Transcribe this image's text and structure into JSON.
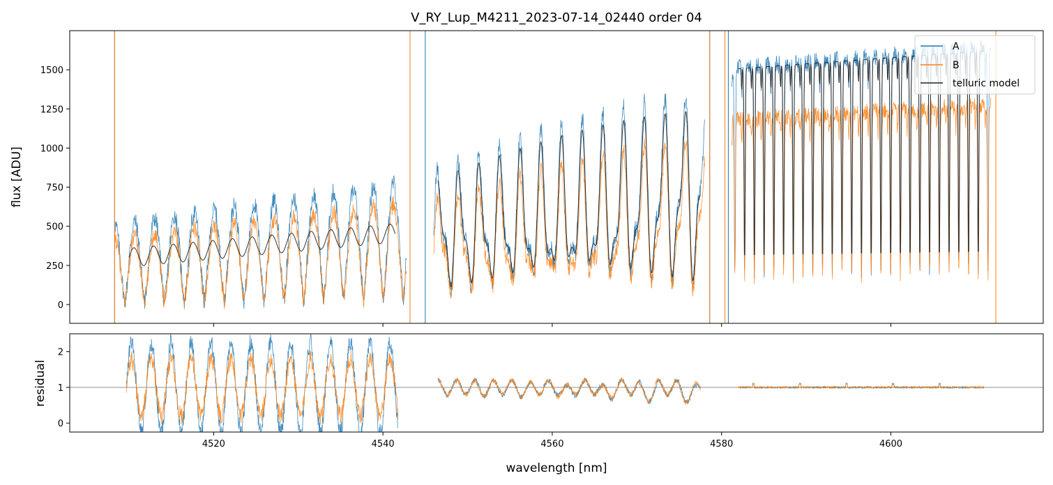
{
  "chart_data": [
    {
      "type": "line",
      "panel": "top",
      "title": "V_RY_Lup_M4211_2023-07-14_02440  order 04",
      "xlabel": "",
      "ylabel": "flux [ADU]",
      "xlim": [
        4503,
        4618
      ],
      "ylim": [
        -120,
        1750
      ],
      "xticks": [
        4520,
        4540,
        4560,
        4580,
        4600
      ],
      "yticks": [
        0,
        250,
        500,
        750,
        1000,
        1250,
        1500
      ],
      "legend_position": "top-right",
      "series": [
        {
          "name": "A",
          "color": "#1f77b4",
          "x_range": [
            4508.0,
            4612.0
          ],
          "segments": [
            [
              4508.3,
              4542.8
            ],
            [
              4546.0,
              4578.0
            ],
            [
              4581.2,
              4611.8
            ]
          ],
          "spikes": [
            4508.3,
            4543.2,
            4545.0,
            4578.6,
            4580.8
          ]
        },
        {
          "name": "B",
          "color": "#ff7f0e",
          "x_range": [
            4508.0,
            4612.0
          ],
          "segments": [
            [
              4508.3,
              4542.8
            ],
            [
              4546.0,
              4578.0
            ],
            [
              4581.2,
              4611.8
            ]
          ],
          "spikes": [
            4508.3,
            4543.2,
            4578.6,
            4580.4,
            4612.4
          ]
        },
        {
          "name": "telluric model",
          "color": "#222222",
          "segments": [
            [
              4510.0,
              4541.5
            ],
            [
              4546.5,
              4577.5
            ],
            [
              4582.0,
              4611.0
            ]
          ]
        }
      ]
    },
    {
      "type": "line",
      "panel": "bottom",
      "xlabel": "wavelength [nm]",
      "ylabel": "residual",
      "xlim": [
        4503,
        4618
      ],
      "ylim": [
        -0.25,
        2.5
      ],
      "xticks": [
        4520,
        4540,
        4560,
        4580,
        4600
      ],
      "yticks": [
        0,
        1,
        2
      ],
      "reference_line": 1,
      "series": [
        {
          "name": "A",
          "color": "#1f77b4",
          "segments": [
            [
              4509.7,
              4541.8
            ],
            [
              4546.5,
              4577.5
            ],
            [
              4582.0,
              4611.0
            ]
          ]
        },
        {
          "name": "B",
          "color": "#ff7f0e",
          "segments": [
            [
              4509.7,
              4541.8
            ],
            [
              4546.5,
              4577.5
            ],
            [
              4582.0,
              4611.0
            ]
          ]
        }
      ]
    }
  ]
}
